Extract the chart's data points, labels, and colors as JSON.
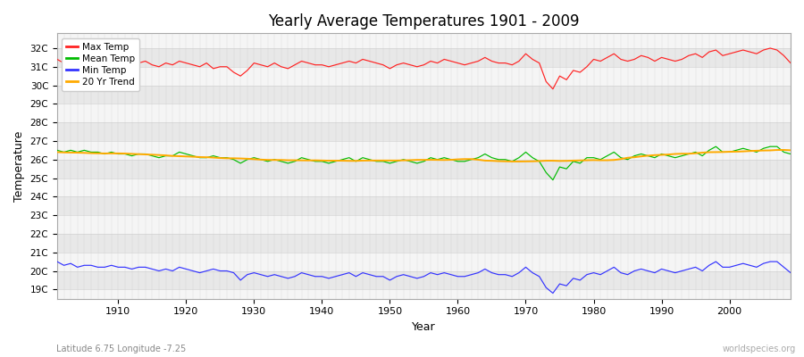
{
  "title": "Yearly Average Temperatures 1901 - 2009",
  "xlabel": "Year",
  "ylabel": "Temperature",
  "subtitle": "Latitude 6.75 Longitude -7.25",
  "watermark": "worldspecies.org",
  "legend_labels": [
    "Max Temp",
    "Mean Temp",
    "Min Temp",
    "20 Yr Trend"
  ],
  "line_colors": [
    "#ff2222",
    "#00bb00",
    "#3333ff",
    "#ffaa00"
  ],
  "bg_color": "#ffffff",
  "plot_bg_color": "#f5f5f5",
  "ylim": [
    18.5,
    32.8
  ],
  "yticks": [
    19,
    20,
    21,
    22,
    23,
    24,
    25,
    26,
    27,
    28,
    29,
    30,
    31,
    32
  ],
  "ytick_labels": [
    "19C",
    "20C",
    "21C",
    "22C",
    "23C",
    "24C",
    "25C",
    "26C",
    "27C",
    "28C",
    "29C",
    "30C",
    "31C",
    "32C"
  ],
  "years": [
    1901,
    1902,
    1903,
    1904,
    1905,
    1906,
    1907,
    1908,
    1909,
    1910,
    1911,
    1912,
    1913,
    1914,
    1915,
    1916,
    1917,
    1918,
    1919,
    1920,
    1921,
    1922,
    1923,
    1924,
    1925,
    1926,
    1927,
    1928,
    1929,
    1930,
    1931,
    1932,
    1933,
    1934,
    1935,
    1936,
    1937,
    1938,
    1939,
    1940,
    1941,
    1942,
    1943,
    1944,
    1945,
    1946,
    1947,
    1948,
    1949,
    1950,
    1951,
    1952,
    1953,
    1954,
    1955,
    1956,
    1957,
    1958,
    1959,
    1960,
    1961,
    1962,
    1963,
    1964,
    1965,
    1966,
    1967,
    1968,
    1969,
    1970,
    1971,
    1972,
    1973,
    1974,
    1975,
    1976,
    1977,
    1978,
    1979,
    1980,
    1981,
    1982,
    1983,
    1984,
    1985,
    1986,
    1987,
    1988,
    1989,
    1990,
    1991,
    1992,
    1993,
    1994,
    1995,
    1996,
    1997,
    1998,
    1999,
    2000,
    2001,
    2002,
    2003,
    2004,
    2005,
    2006,
    2007,
    2008,
    2009
  ],
  "max_temp": [
    31.4,
    31.2,
    31.3,
    31.1,
    31.4,
    31.3,
    31.2,
    31.1,
    31.3,
    31.2,
    31.1,
    31.0,
    31.2,
    31.3,
    31.1,
    31.0,
    31.2,
    31.1,
    31.3,
    31.2,
    31.1,
    31.0,
    31.2,
    30.9,
    31.0,
    31.0,
    30.7,
    30.5,
    30.8,
    31.2,
    31.1,
    31.0,
    31.2,
    31.0,
    30.9,
    31.1,
    31.3,
    31.2,
    31.1,
    31.1,
    31.0,
    31.1,
    31.2,
    31.3,
    31.2,
    31.4,
    31.3,
    31.2,
    31.1,
    30.9,
    31.1,
    31.2,
    31.1,
    31.0,
    31.1,
    31.3,
    31.2,
    31.4,
    31.3,
    31.2,
    31.1,
    31.2,
    31.3,
    31.5,
    31.3,
    31.2,
    31.2,
    31.1,
    31.3,
    31.7,
    31.4,
    31.2,
    30.2,
    29.8,
    30.5,
    30.3,
    30.8,
    30.7,
    31.0,
    31.4,
    31.3,
    31.5,
    31.7,
    31.4,
    31.3,
    31.4,
    31.6,
    31.5,
    31.3,
    31.5,
    31.4,
    31.3,
    31.4,
    31.6,
    31.7,
    31.5,
    31.8,
    31.9,
    31.6,
    31.7,
    31.8,
    31.9,
    31.8,
    31.7,
    31.9,
    32.0,
    31.9,
    31.6,
    31.2
  ],
  "mean_temp": [
    26.5,
    26.4,
    26.5,
    26.4,
    26.5,
    26.4,
    26.4,
    26.3,
    26.4,
    26.3,
    26.3,
    26.2,
    26.3,
    26.3,
    26.2,
    26.1,
    26.2,
    26.2,
    26.4,
    26.3,
    26.2,
    26.1,
    26.1,
    26.2,
    26.1,
    26.1,
    26.0,
    25.8,
    26.0,
    26.1,
    26.0,
    25.9,
    26.0,
    25.9,
    25.8,
    25.9,
    26.1,
    26.0,
    25.9,
    25.9,
    25.8,
    25.9,
    26.0,
    26.1,
    25.9,
    26.1,
    26.0,
    25.9,
    25.9,
    25.8,
    25.9,
    26.0,
    25.9,
    25.8,
    25.9,
    26.1,
    26.0,
    26.1,
    26.0,
    25.9,
    25.9,
    26.0,
    26.1,
    26.3,
    26.1,
    26.0,
    26.0,
    25.9,
    26.1,
    26.4,
    26.1,
    25.9,
    25.3,
    24.9,
    25.6,
    25.5,
    25.9,
    25.8,
    26.1,
    26.1,
    26.0,
    26.2,
    26.4,
    26.1,
    26.0,
    26.2,
    26.3,
    26.2,
    26.1,
    26.3,
    26.2,
    26.1,
    26.2,
    26.3,
    26.4,
    26.2,
    26.5,
    26.7,
    26.4,
    26.4,
    26.5,
    26.6,
    26.5,
    26.4,
    26.6,
    26.7,
    26.7,
    26.4,
    26.3
  ],
  "min_temp": [
    20.5,
    20.3,
    20.4,
    20.2,
    20.3,
    20.3,
    20.2,
    20.2,
    20.3,
    20.2,
    20.2,
    20.1,
    20.2,
    20.2,
    20.1,
    20.0,
    20.1,
    20.0,
    20.2,
    20.1,
    20.0,
    19.9,
    20.0,
    20.1,
    20.0,
    20.0,
    19.9,
    19.5,
    19.8,
    19.9,
    19.8,
    19.7,
    19.8,
    19.7,
    19.6,
    19.7,
    19.9,
    19.8,
    19.7,
    19.7,
    19.6,
    19.7,
    19.8,
    19.9,
    19.7,
    19.9,
    19.8,
    19.7,
    19.7,
    19.5,
    19.7,
    19.8,
    19.7,
    19.6,
    19.7,
    19.9,
    19.8,
    19.9,
    19.8,
    19.7,
    19.7,
    19.8,
    19.9,
    20.1,
    19.9,
    19.8,
    19.8,
    19.7,
    19.9,
    20.2,
    19.9,
    19.7,
    19.1,
    18.8,
    19.3,
    19.2,
    19.6,
    19.5,
    19.8,
    19.9,
    19.8,
    20.0,
    20.2,
    19.9,
    19.8,
    20.0,
    20.1,
    20.0,
    19.9,
    20.1,
    20.0,
    19.9,
    20.0,
    20.1,
    20.2,
    20.0,
    20.3,
    20.5,
    20.2,
    20.2,
    20.3,
    20.4,
    20.3,
    20.2,
    20.4,
    20.5,
    20.5,
    20.2,
    19.9
  ]
}
